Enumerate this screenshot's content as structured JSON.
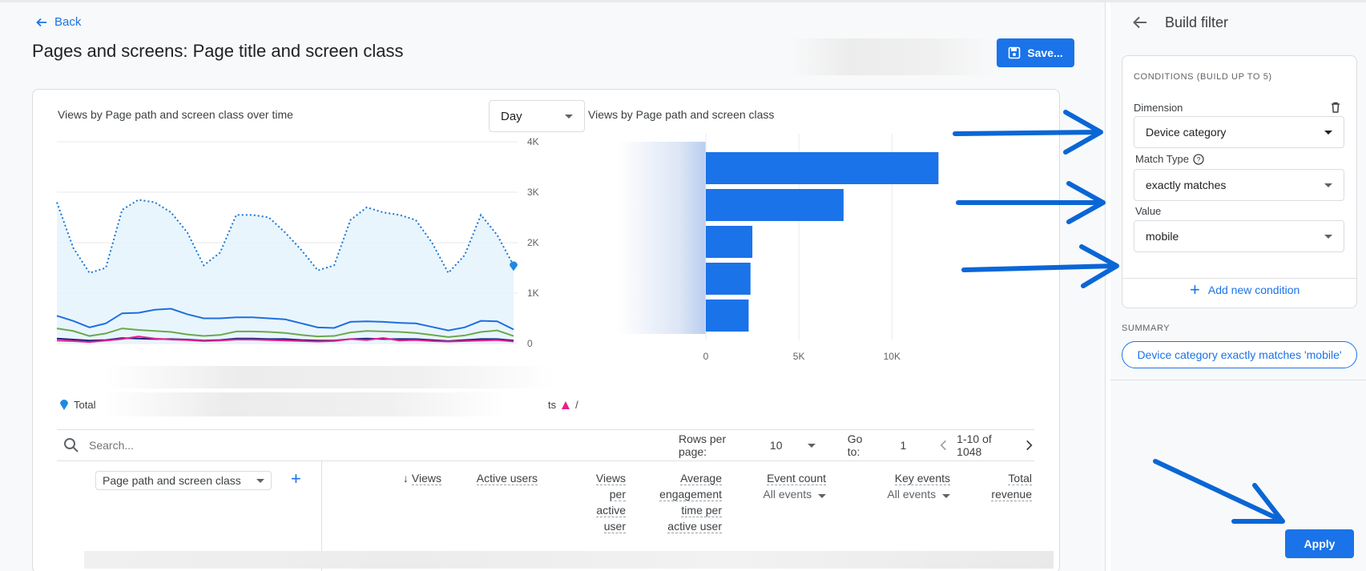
{
  "header": {
    "back_label": "Back",
    "title": "Pages and screens: Page title and screen class",
    "save_label": "Save..."
  },
  "colors": {
    "accent": "#1a73e8",
    "annotation_arrow": "#0a66d6"
  },
  "line_chart": {
    "title": "Views by Page path and screen class over time",
    "period_select": "Day",
    "y_ticks": [
      "4K",
      "3K",
      "2K",
      "1K",
      "0"
    ],
    "legend_total": "Total",
    "legend_right_text": "ts",
    "legend_right_series": "/"
  },
  "bar_chart": {
    "title": "Views by Page path and screen class",
    "x_ticks": [
      "0",
      "5K",
      "10K"
    ]
  },
  "chart_data": [
    {
      "type": "line",
      "title": "Views by Page path and screen class over time",
      "ylim": [
        0,
        4000
      ],
      "series": [
        {
          "name": "Total",
          "values": [
            2800,
            1900,
            1400,
            1500,
            2650,
            2850,
            2800,
            2600,
            2200,
            1550,
            1800,
            2550,
            2550,
            2500,
            2200,
            1850,
            1450,
            1550,
            2450,
            2700,
            2600,
            2550,
            2450,
            2000,
            1400,
            1750,
            2550,
            2150,
            1550
          ]
        },
        {
          "values": [
            550,
            450,
            320,
            400,
            600,
            610,
            670,
            690,
            580,
            500,
            500,
            520,
            520,
            500,
            480,
            400,
            320,
            310,
            430,
            440,
            430,
            410,
            400,
            330,
            260,
            320,
            450,
            440,
            280
          ]
        },
        {
          "values": [
            300,
            250,
            150,
            200,
            300,
            270,
            250,
            230,
            180,
            150,
            170,
            240,
            240,
            230,
            210,
            170,
            140,
            150,
            220,
            250,
            240,
            230,
            210,
            170,
            130,
            160,
            230,
            260,
            150
          ]
        },
        {
          "values": [
            100,
            80,
            60,
            70,
            110,
            100,
            90,
            90,
            80,
            60,
            70,
            100,
            100,
            90,
            90,
            70,
            60,
            60,
            90,
            100,
            90,
            90,
            90,
            70,
            50,
            70,
            90,
            90,
            60
          ]
        },
        {
          "values": [
            60,
            50,
            30,
            60,
            90,
            140,
            100,
            80,
            70,
            50,
            60,
            80,
            80,
            70,
            60,
            50,
            40,
            50,
            90,
            70,
            110,
            60,
            70,
            50,
            40,
            50,
            60,
            70,
            40
          ]
        }
      ]
    },
    {
      "type": "bar",
      "title": "Views by Page path and screen class",
      "xlim": [
        0,
        13000
      ],
      "values": [
        12500,
        7400,
        2500,
        2400,
        2300
      ]
    }
  ],
  "table": {
    "search_placeholder": "Search...",
    "rows_per_page_label": "Rows per page:",
    "rows_per_page": "10",
    "goto_label": "Go to:",
    "goto_value": "1",
    "range": "1-10 of 1048",
    "dimension": "Page path and screen class",
    "columns": {
      "views": "Views",
      "active_users": "Active users",
      "views_per_user": [
        "Views",
        "per",
        "active",
        "user"
      ],
      "avg_engagement": [
        "Average",
        "engagement",
        "time per",
        "active user"
      ],
      "event_count": "Event count",
      "event_count_sub": "All events",
      "key_events": "Key events",
      "key_events_sub": "All events",
      "total_revenue": [
        "Total",
        "revenue"
      ]
    }
  },
  "panel": {
    "title": "Build filter",
    "conditions_heading": "CONDITIONS (BUILD UP TO 5)",
    "dimension_label": "Dimension",
    "dimension_value": "Device category",
    "match_type_label": "Match Type",
    "match_type_value": "exactly matches",
    "value_label": "Value",
    "value_value": "mobile",
    "add_condition": "Add new condition",
    "summary_label": "SUMMARY",
    "summary_text": "Device category exactly matches 'mobile'",
    "apply_label": "Apply"
  }
}
